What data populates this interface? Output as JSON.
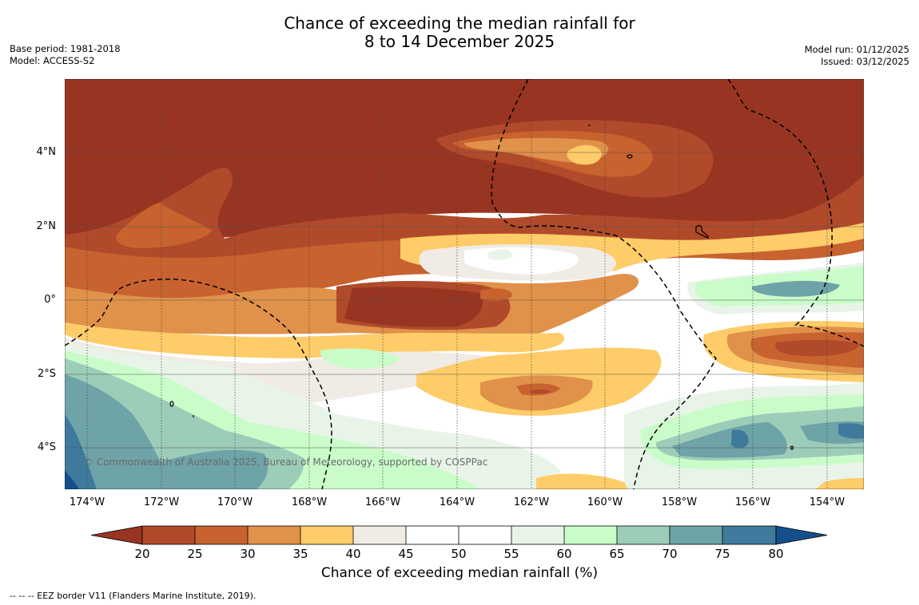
{
  "title": {
    "line1": "Chance of exceeding the median rainfall for",
    "line2": "8 to 14 December 2025"
  },
  "meta": {
    "base_period": "Base period: 1981-2018",
    "model": "Model: ACCESS-S2",
    "model_run": "Model run: 01/12/2025",
    "issued": "Issued: 03/12/2025"
  },
  "map": {
    "lat_labels": [
      "4°N",
      "2°N",
      "0°",
      "2°S",
      "4°S"
    ],
    "lon_labels": [
      "174°W",
      "172°W",
      "170°W",
      "168°W",
      "166°W",
      "164°W",
      "162°W",
      "160°W",
      "158°W",
      "156°W",
      "154°W"
    ],
    "copyright": "© Commonwealth of Australia 2025, Bureau of Meteorology, supported by COSPPac"
  },
  "colorbar": {
    "ticks": [
      "20",
      "25",
      "30",
      "35",
      "40",
      "45",
      "50",
      "55",
      "60",
      "65",
      "70",
      "75",
      "80"
    ],
    "colors": [
      "#983522",
      "#b14a2a",
      "#c8622f",
      "#e0914a",
      "#fecc68",
      "#f1ebe6",
      "#ffffff",
      "#ffffff",
      "#e9f4e9",
      "#c9fcc9",
      "#9ccdb9",
      "#6ea3a8",
      "#3f7a9d",
      "#144f8c"
    ],
    "title": "Chance of exceeding median rainfall (%)"
  },
  "footer": "--  --  -- EEZ border V11 (Flanders Marine Institute, 2019)."
}
